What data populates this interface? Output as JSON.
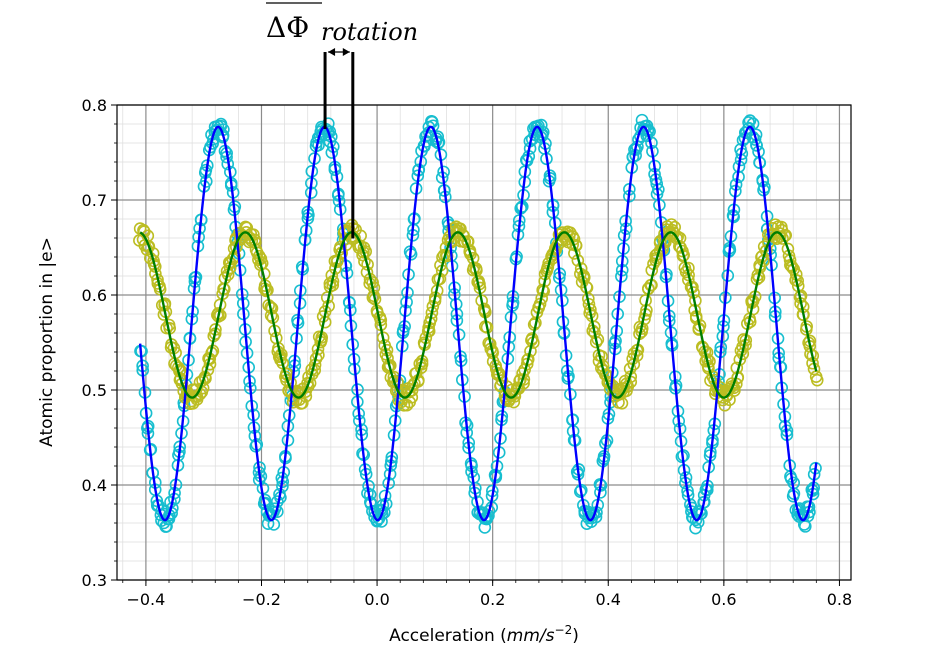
{
  "chart_data": {
    "type": "scatter",
    "xlabel": "Acceleration (mm/s−2)",
    "xlabel_parts": {
      "prefix": "Acceleration (",
      "unit_base": "mm/s",
      "unit_exp": "−2",
      "suffix": ")"
    },
    "ylabel": "Atomic proportion in |e>",
    "xlim": [
      -0.45,
      0.82
    ],
    "ylim": [
      0.3,
      0.8
    ],
    "x_ticks": [
      -0.4,
      -0.2,
      0.0,
      0.2,
      0.4,
      0.6,
      0.8
    ],
    "x_tick_labels": [
      "−0.4",
      "−0.2",
      "0.0",
      "0.2",
      "0.4",
      "0.6",
      "0.8"
    ],
    "y_ticks": [
      0.3,
      0.4,
      0.5,
      0.6,
      0.7,
      0.8
    ],
    "y_tick_labels": [
      "0.3",
      "0.4",
      "0.5",
      "0.6",
      "0.7",
      "0.8"
    ],
    "grid": true,
    "minor_grid": true,
    "legend": "none",
    "annotation": {
      "text_main": "ΔΦ",
      "text_sub": "rotation",
      "overline": true,
      "marker_x": [
        -0.09,
        -0.042
      ]
    },
    "series": [
      {
        "kind": "scatter",
        "marker": "open-circle",
        "color": "#17becf",
        "x_range": [
          -0.41,
          0.76
        ],
        "fit": {
          "offset": 0.57,
          "amplitude": 0.207,
          "period": 0.184,
          "peak_x": -0.275
        }
      },
      {
        "kind": "scatter",
        "marker": "open-circle",
        "color": "#bcbd22",
        "x_range": [
          -0.41,
          0.76
        ],
        "fit": {
          "offset": 0.579,
          "amplitude": 0.087,
          "period": 0.184,
          "peak_x": -0.228
        }
      },
      {
        "kind": "line",
        "color": "#0000ff",
        "x_range": [
          -0.41,
          0.76
        ],
        "fit": {
          "offset": 0.57,
          "amplitude": 0.207,
          "period": 0.184,
          "peak_x": -0.275
        }
      },
      {
        "kind": "line",
        "color": "#007f00",
        "x_range": [
          -0.41,
          0.76
        ],
        "fit": {
          "offset": 0.579,
          "amplitude": 0.087,
          "period": 0.184,
          "peak_x": -0.228
        }
      }
    ]
  }
}
